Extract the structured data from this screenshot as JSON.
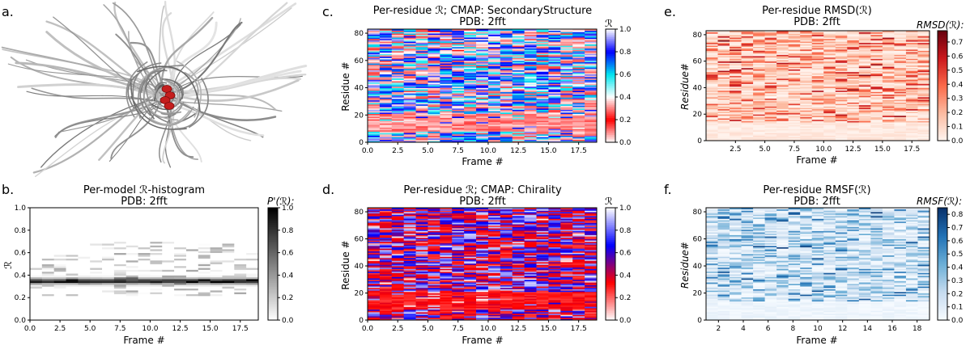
{
  "panels": {
    "a": {
      "label": "a."
    },
    "b": {
      "label": "b.",
      "title1": "Per-model ℛ-histogram",
      "title2": "PDB: 2fft",
      "xlabel": "Frame #",
      "ylabel": "ℛ",
      "cbar_label": "P'(ℛ):"
    },
    "c": {
      "label": "c.",
      "title1": "Per-residue ℛ; CMAP: SecondaryStructure",
      "title2": "PDB: 2fft",
      "xlabel": "Frame #",
      "ylabel": "Residue #",
      "cbar_label": "ℛ"
    },
    "d": {
      "label": "d.",
      "title1": "Per-residue ℛ; CMAP: Chirality",
      "title2": "PDB: 2fft",
      "xlabel": "Frame #",
      "ylabel": "Residue #",
      "cbar_label": "ℛ"
    },
    "e": {
      "label": "e.",
      "title1": "Per-residue RMSD(ℛ)",
      "title2": "PDB: 2fft",
      "xlabel": "Frame #",
      "ylabel": "Residue#",
      "cbar_label": "RMSD(ℛ):"
    },
    "f": {
      "label": "f.",
      "title1": "Per-residue RMSF(ℛ)",
      "title2": "PDB: 2fft",
      "xlabel": "Frame #",
      "ylabel": "Residue#",
      "cbar_label": "RMSF(ℛ):"
    }
  },
  "chart_data": [
    {
      "panel": "b",
      "type": "heatmap",
      "x_ticks": [
        "0.0",
        "2.5",
        "5.0",
        "7.5",
        "10.0",
        "12.5",
        "15.0",
        "17.5"
      ],
      "y_ticks": [
        "0.0",
        "0.2",
        "0.4",
        "0.6",
        "0.8",
        "1.0"
      ],
      "xlim": [
        0,
        19
      ],
      "ylim": [
        0,
        1
      ],
      "cbar_ticks": [
        "0.0",
        "0.2",
        "0.4",
        "0.6",
        "0.8",
        "1.0"
      ],
      "cbar_range": [
        0,
        1
      ],
      "colormap": [
        "#ffffff",
        "#000000"
      ]
    },
    {
      "panel": "c",
      "type": "heatmap",
      "x_ticks": [
        "0.0",
        "2.5",
        "5.0",
        "7.5",
        "10.0",
        "12.5",
        "15.0",
        "17.5"
      ],
      "y_ticks": [
        "0",
        "20",
        "40",
        "60",
        "80"
      ],
      "xlim": [
        0,
        19
      ],
      "ylim": [
        0,
        83
      ],
      "cbar_ticks": [
        "0.0",
        "0.2",
        "0.4",
        "0.6",
        "0.8",
        "1.0"
      ],
      "cbar_range": [
        0,
        1
      ],
      "colormap": [
        "#ffffff",
        "#ff0000",
        "#ffffff",
        "#00e5ee",
        "#0000ff",
        "#ffffff"
      ]
    },
    {
      "panel": "d",
      "type": "heatmap",
      "x_ticks": [
        "0.0",
        "2.5",
        "5.0",
        "7.5",
        "10.0",
        "12.5",
        "15.0",
        "17.5"
      ],
      "y_ticks": [
        "0",
        "20",
        "40",
        "60",
        "80"
      ],
      "xlim": [
        0,
        19
      ],
      "ylim": [
        0,
        83
      ],
      "cbar_ticks": [
        "0.0",
        "0.2",
        "0.4",
        "0.6",
        "0.8",
        "1.0"
      ],
      "cbar_range": [
        0,
        1
      ],
      "colormap": [
        "#ffffff",
        "#ff0000",
        "#0000ff",
        "#ffffff"
      ]
    },
    {
      "panel": "e",
      "type": "heatmap",
      "x_ticks": [
        "2.5",
        "5.0",
        "7.5",
        "10.0",
        "12.5",
        "15.0",
        "17.5"
      ],
      "y_ticks": [
        "0",
        "20",
        "40",
        "60",
        "80"
      ],
      "xlim": [
        0,
        19
      ],
      "ylim": [
        0,
        83
      ],
      "cbar_ticks": [
        "0.0",
        "0.1",
        "0.2",
        "0.3",
        "0.4",
        "0.5",
        "0.6",
        "0.7"
      ],
      "cbar_range": [
        0,
        0.78
      ],
      "colormap": [
        "#fff5f0",
        "#fcbba1",
        "#fb6a4a",
        "#cb181d",
        "#67000d"
      ]
    },
    {
      "panel": "f",
      "type": "heatmap",
      "x_ticks": [
        "2",
        "4",
        "6",
        "8",
        "10",
        "12",
        "14",
        "16",
        "18"
      ],
      "y_ticks": [
        "0",
        "20",
        "40",
        "60",
        "80"
      ],
      "xlim": [
        1,
        19
      ],
      "ylim": [
        0,
        83
      ],
      "cbar_ticks": [
        "0.0",
        "0.1",
        "0.2",
        "0.3",
        "0.4",
        "0.5",
        "0.6",
        "0.7",
        "0.8"
      ],
      "cbar_range": [
        0,
        0.85
      ],
      "colormap": [
        "#f7fbff",
        "#c6dbef",
        "#6baed6",
        "#2171b5",
        "#08306b"
      ]
    }
  ]
}
